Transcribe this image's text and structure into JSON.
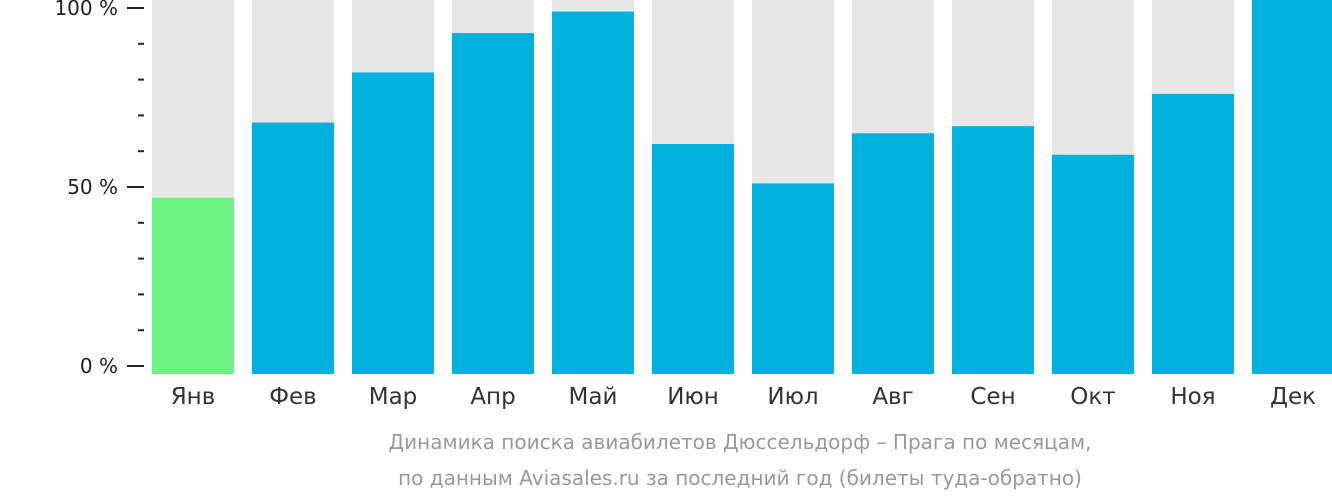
{
  "chart_data": {
    "type": "bar",
    "categories": [
      "Янв",
      "Фев",
      "Мар",
      "Апр",
      "Май",
      "Июн",
      "Июл",
      "Авг",
      "Сен",
      "Окт",
      "Ноя",
      "Дек"
    ],
    "values": [
      47,
      68,
      82,
      93,
      99,
      62,
      51,
      65,
      67,
      59,
      76,
      100
    ],
    "highlight_index": 0,
    "ylim": [
      0,
      100
    ],
    "yticks": [
      {
        "value": 0,
        "label": "0 %"
      },
      {
        "value": 50,
        "label": "50 %"
      },
      {
        "value": 100,
        "label": "100 %"
      }
    ],
    "minor_tick_step": 10,
    "colors": {
      "bar": "#00b0dd",
      "highlight": "#6cf283",
      "background_bar": "#e8e7e8",
      "axis": "#222222"
    }
  },
  "caption": {
    "line1": "Динамика поиска авиабилетов Дюссельдорф – Прага по месяцам,",
    "line2": "по данным Aviasales.ru за последний год (билеты туда-обратно)"
  }
}
